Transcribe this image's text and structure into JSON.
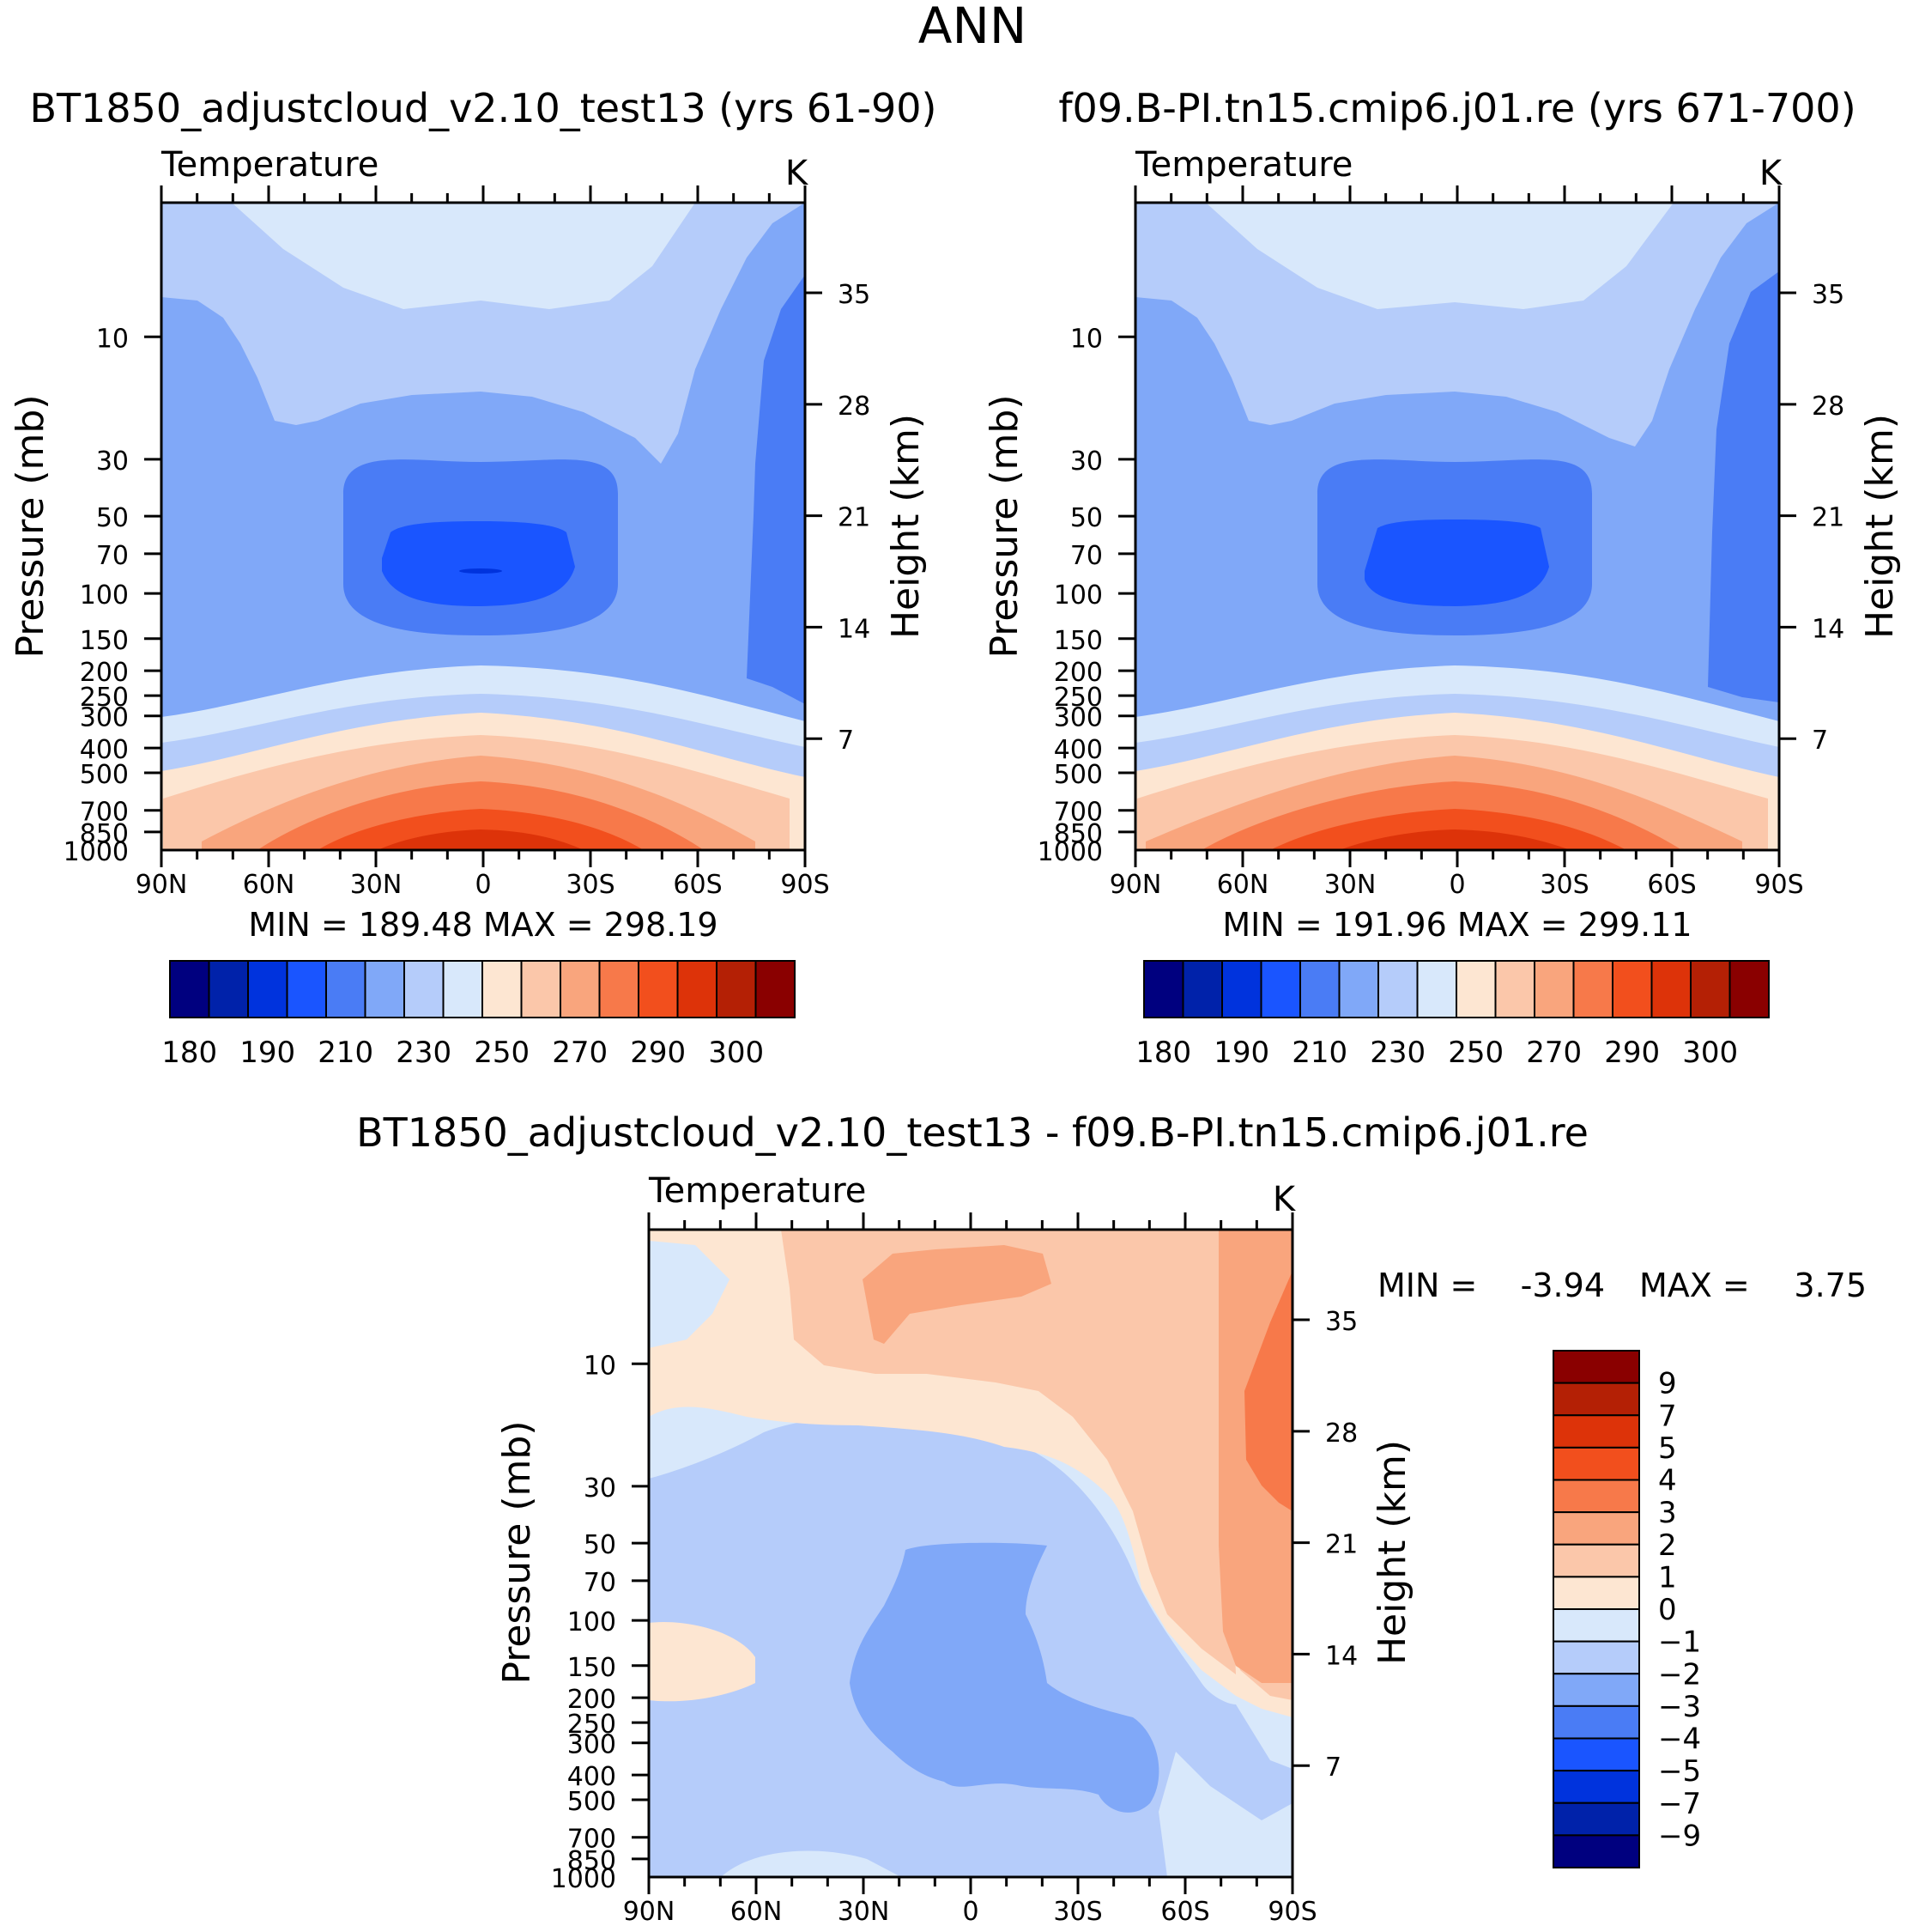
{
  "page_title": "ANN",
  "chart_data": [
    {
      "type": "contour",
      "panel": "top-left",
      "title": "BT1850_adjustcloud_v2.10_test13 (yrs 61-90)",
      "variable": "Temperature",
      "units": "K",
      "xlabel": "",
      "ylabel": "Pressure (mb)",
      "y2label": "Height (km)",
      "x_ticks": [
        "90N",
        "60N",
        "30N",
        "0",
        "30S",
        "60S",
        "90S"
      ],
      "x_range": [
        90,
        -90
      ],
      "y_range_mb": [
        1000,
        3
      ],
      "pressure_ticks": [
        10,
        30,
        50,
        70,
        100,
        150,
        200,
        250,
        300,
        400,
        500,
        700,
        850,
        1000
      ],
      "height_ticks": [
        7,
        14,
        21,
        28,
        35
      ],
      "stats_text": "MIN = 189.48 MAX = 298.19",
      "min": 189.48,
      "max": 298.19,
      "contour_levels": [
        180,
        185,
        190,
        200,
        210,
        220,
        230,
        240,
        250,
        260,
        270,
        280,
        290,
        295,
        300
      ],
      "colorbar_labels": [
        "180",
        "190",
        "210",
        "230",
        "250",
        "270",
        "290",
        "300"
      ],
      "colors": [
        "#00007f",
        "#0022aa",
        "#0033dd",
        "#1a55ff",
        "#4a7cf5",
        "#80a8f8",
        "#b5ccfa",
        "#d8e8fb",
        "#fde6d2",
        "#fbc7aa",
        "#f9a57d",
        "#f7794a",
        "#f24f1d",
        "#dd3309",
        "#b42005",
        "#8a0000"
      ]
    },
    {
      "type": "contour",
      "panel": "top-right",
      "title": "f09.B-PI.tn15.cmip6.j01.re (yrs 671-700)",
      "variable": "Temperature",
      "units": "K",
      "xlabel": "",
      "ylabel": "Pressure (mb)",
      "y2label": "Height (km)",
      "x_ticks": [
        "90N",
        "60N",
        "30N",
        "0",
        "30S",
        "60S",
        "90S"
      ],
      "x_range": [
        90,
        -90
      ],
      "y_range_mb": [
        1000,
        3
      ],
      "pressure_ticks": [
        10,
        30,
        50,
        70,
        100,
        150,
        200,
        250,
        300,
        400,
        500,
        700,
        850,
        1000
      ],
      "height_ticks": [
        7,
        14,
        21,
        28,
        35
      ],
      "stats_text": "MIN = 191.96 MAX = 299.11",
      "min": 191.96,
      "max": 299.11,
      "contour_levels": [
        180,
        185,
        190,
        200,
        210,
        220,
        230,
        240,
        250,
        260,
        270,
        280,
        290,
        295,
        300
      ],
      "colorbar_labels": [
        "180",
        "190",
        "210",
        "230",
        "250",
        "270",
        "290",
        "300"
      ],
      "colors": [
        "#00007f",
        "#0022aa",
        "#0033dd",
        "#1a55ff",
        "#4a7cf5",
        "#80a8f8",
        "#b5ccfa",
        "#d8e8fb",
        "#fde6d2",
        "#fbc7aa",
        "#f9a57d",
        "#f7794a",
        "#f24f1d",
        "#dd3309",
        "#b42005",
        "#8a0000"
      ]
    },
    {
      "type": "contour",
      "panel": "bottom-difference",
      "title": "BT1850_adjustcloud_v2.10_test13 - f09.B-PI.tn15.cmip6.j01.re",
      "variable": "Temperature",
      "units": "K",
      "xlabel": "",
      "ylabel": "Pressure (mb)",
      "y2label": "Height (km)",
      "x_ticks": [
        "90N",
        "60N",
        "30N",
        "0",
        "30S",
        "60S",
        "90S"
      ],
      "x_range": [
        90,
        -90
      ],
      "y_range_mb": [
        1000,
        3
      ],
      "pressure_ticks": [
        10,
        30,
        50,
        70,
        100,
        150,
        200,
        250,
        300,
        400,
        500,
        700,
        850,
        1000
      ],
      "height_ticks": [
        7,
        14,
        21,
        28,
        35
      ],
      "stats_min_label": "MIN =",
      "stats_min_value": "-3.94",
      "stats_max_label": "MAX =",
      "stats_max_value": "3.75",
      "min": -3.94,
      "max": 3.75,
      "contour_levels": [
        -9,
        -7,
        -5,
        -4,
        -3,
        -2,
        -1,
        0,
        1,
        2,
        3,
        4,
        5,
        7,
        9
      ],
      "colorbar_labels": [
        "9",
        "7",
        "5",
        "4",
        "3",
        "2",
        "1",
        "0",
        "−1",
        "−2",
        "−3",
        "−4",
        "−5",
        "−7",
        "−9"
      ],
      "colors": [
        "#00007f",
        "#0022aa",
        "#0033dd",
        "#1a55ff",
        "#4a7cf5",
        "#80a8f8",
        "#b5ccfa",
        "#d8e8fb",
        "#fde6d2",
        "#fbc7aa",
        "#f9a57d",
        "#f7794a",
        "#f24f1d",
        "#dd3309",
        "#b42005",
        "#8a0000"
      ]
    }
  ]
}
